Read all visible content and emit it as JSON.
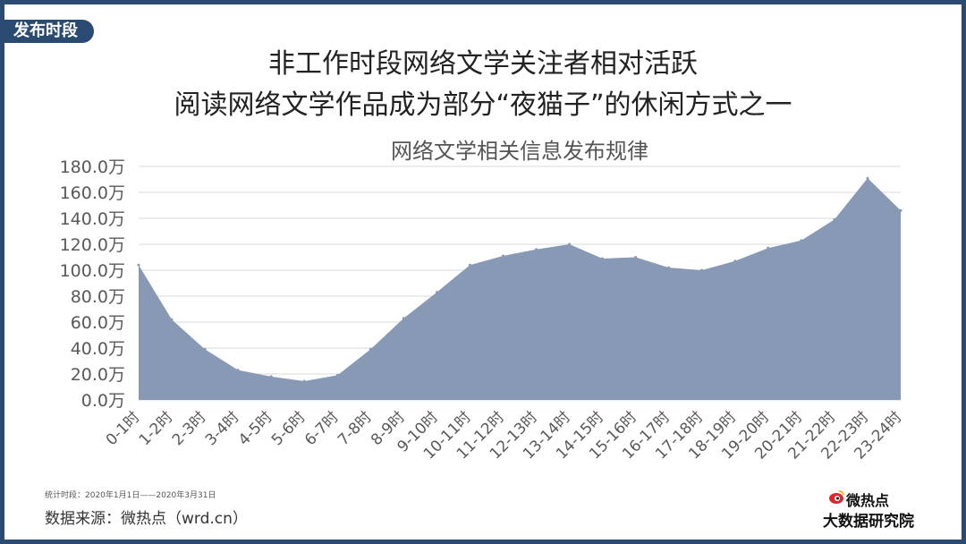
{
  "section_tag": "发布时段",
  "title_line1": "非工作时段网络文学关注者相对活跃",
  "title_line2": "阅读网络文学作品成为部分“夜猫子”的休闲方式之一",
  "footer": {
    "period": "统计时段：2020年1月1日——2020年3月31日",
    "source": "数据来源：微热点（wrd.cn）"
  },
  "logo": {
    "line1": "微热点",
    "line2": "大数据研究院"
  },
  "colors": {
    "area": "#8799b5",
    "frame": "#2a4a72",
    "grid": "#d9d9d9"
  },
  "chart_data": {
    "type": "area",
    "title": "网络文学相关信息发布规律",
    "categories": [
      "0-1时",
      "1-2时",
      "2-3时",
      "3-4时",
      "4-5时",
      "5-6时",
      "6-7时",
      "7-8时",
      "8-9时",
      "9-10时",
      "10-11时",
      "11-12时",
      "12-13时",
      "13-14时",
      "14-15时",
      "15-16时",
      "16-17时",
      "17-18时",
      "18-19时",
      "19-20时",
      "20-21时",
      "21-22时",
      "22-23时",
      "23-24时"
    ],
    "series": [
      {
        "values": [
          104,
          62,
          39,
          23,
          18,
          14.5,
          19,
          39,
          63,
          83,
          104,
          111,
          116,
          120,
          109,
          110,
          102,
          100,
          107,
          117,
          123,
          139,
          171,
          146
        ]
      }
    ],
    "ylim": [
      0,
      180
    ],
    "yticks": [
      "0.0万",
      "20.0万",
      "40.0万",
      "60.0万",
      "80.0万",
      "100.0万",
      "120.0万",
      "140.0万",
      "160.0万",
      "180.0万"
    ],
    "grid": true
  }
}
